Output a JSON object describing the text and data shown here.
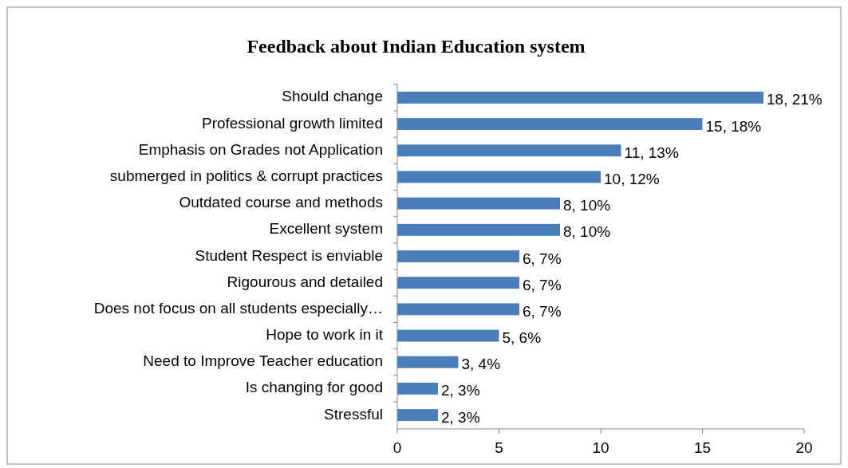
{
  "chart_data": {
    "type": "bar",
    "orientation": "horizontal",
    "title": "Feedback about Indian Education system",
    "categories": [
      "Should change",
      "Professional growth limited",
      "Emphasis on Grades not Application",
      "submerged in politics & corrupt practices",
      "Outdated course and methods",
      "Excellent system",
      "Student Respect is enviable",
      "Rigourous and detailed",
      "Does not focus on all students especially…",
      "Hope to work in it",
      "Need to Improve Teacher education",
      "Is changing for good",
      "Stressful"
    ],
    "values": [
      18,
      15,
      11,
      10,
      8,
      8,
      6,
      6,
      6,
      5,
      3,
      2,
      2
    ],
    "value_labels": [
      "18, 21%",
      "15, 18%",
      "11, 13%",
      "10, 12%",
      "8, 10%",
      "8, 10%",
      "6, 7%",
      "6, 7%",
      "6, 7%",
      "5, 6%",
      "3, 4%",
      "2, 3%",
      "2, 3%"
    ],
    "color": "#4a7ebb",
    "xlim": [
      0,
      20
    ],
    "xticks": [
      0,
      5,
      10,
      15,
      20
    ]
  }
}
